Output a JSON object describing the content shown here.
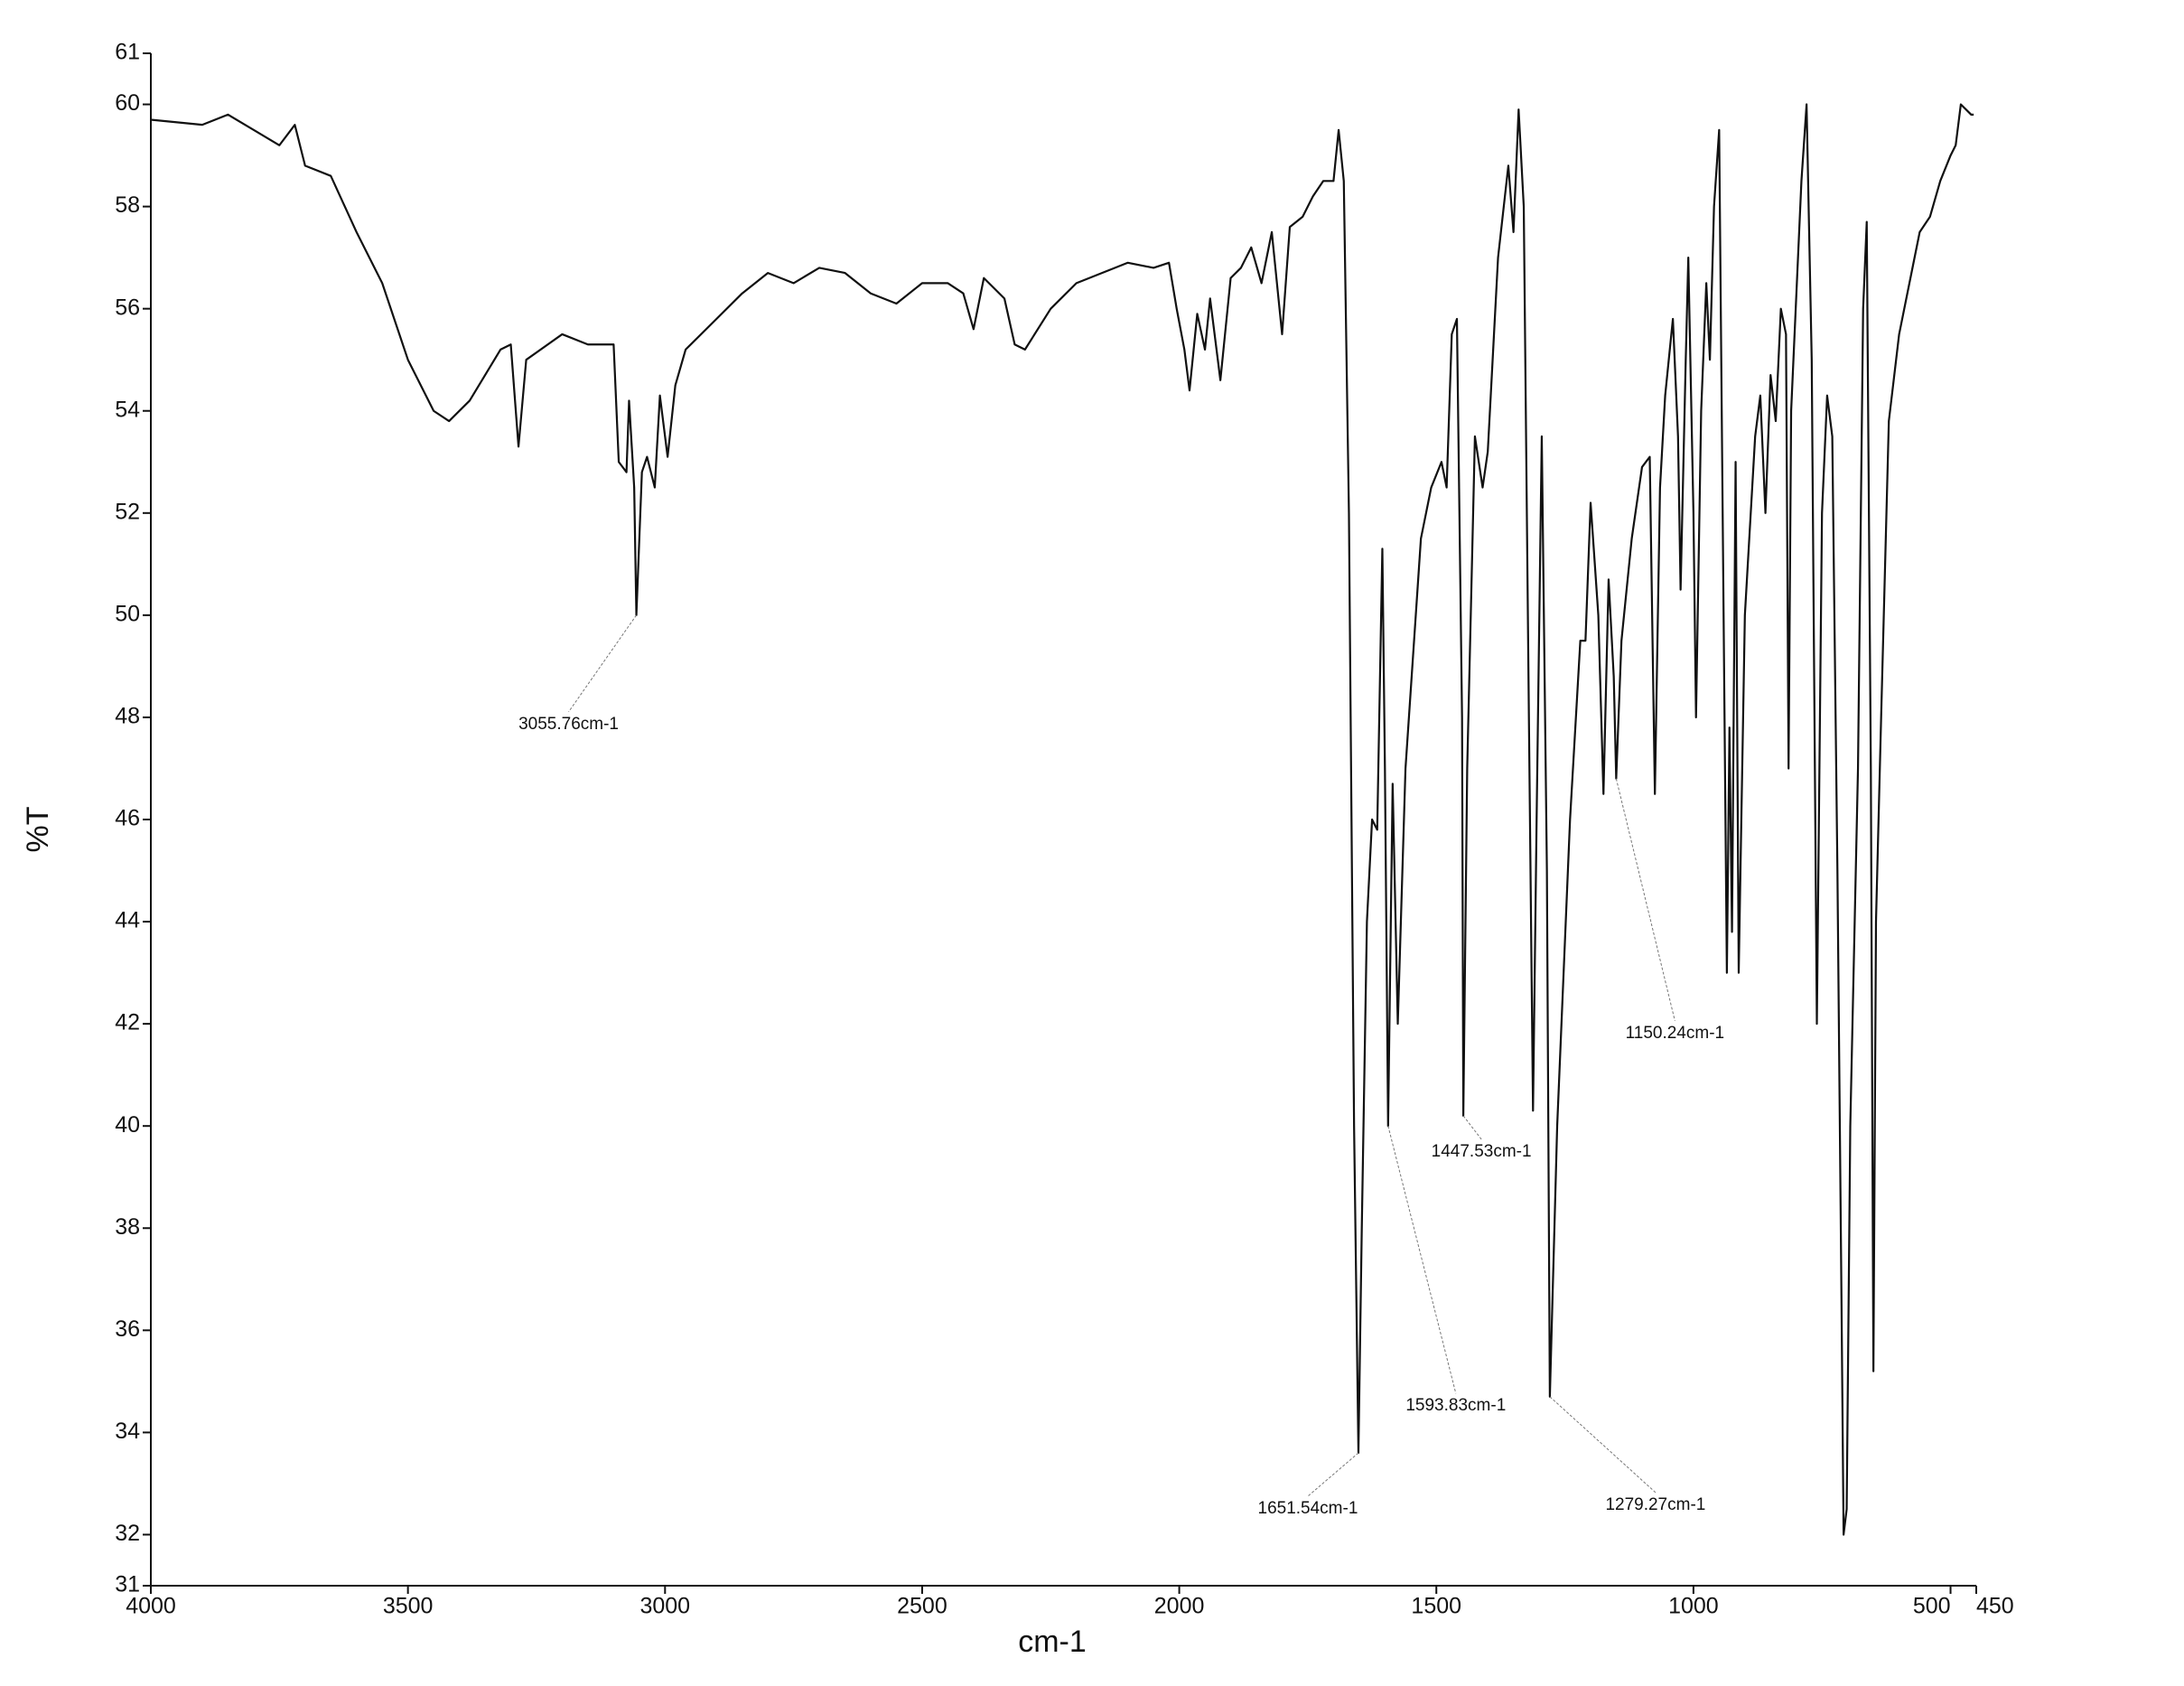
{
  "chart_data": {
    "type": "line",
    "x_label": "cm-1",
    "y_label": "%T",
    "color": "#111111",
    "xlim": [
      4000,
      450
    ],
    "ylim": [
      31,
      61
    ],
    "xticks": [
      4000,
      3500,
      3000,
      2500,
      2000,
      1500,
      1000,
      500,
      450
    ],
    "yticks": [
      31,
      32,
      34,
      36,
      38,
      40,
      42,
      44,
      46,
      48,
      50,
      52,
      54,
      56,
      58,
      60,
      61
    ],
    "x": [
      4000,
      3900,
      3850,
      3800,
      3750,
      3720,
      3700,
      3650,
      3600,
      3550,
      3500,
      3450,
      3420,
      3380,
      3320,
      3300,
      3285,
      3270,
      3200,
      3150,
      3100,
      3090,
      3075,
      3070,
      3060,
      3055.76,
      3045,
      3035,
      3020,
      3010,
      2995,
      2980,
      2960,
      2900,
      2850,
      2800,
      2750,
      2700,
      2650,
      2600,
      2550,
      2500,
      2450,
      2420,
      2400,
      2380,
      2340,
      2320,
      2300,
      2250,
      2200,
      2100,
      2050,
      2020,
      2005,
      1990,
      1980,
      1965,
      1950,
      1940,
      1920,
      1900,
      1880,
      1860,
      1840,
      1820,
      1800,
      1785,
      1760,
      1740,
      1720,
      1700,
      1690,
      1680,
      1670,
      1660,
      1651.54,
      1645,
      1635,
      1625,
      1615,
      1605,
      1600,
      1593.83,
      1585,
      1575,
      1560,
      1530,
      1510,
      1490,
      1480,
      1470,
      1460,
      1450,
      1447.53,
      1440,
      1425,
      1410,
      1400,
      1380,
      1360,
      1350,
      1340,
      1330,
      1320,
      1312,
      1305,
      1295,
      1285,
      1279.27,
      1265,
      1240,
      1220,
      1210,
      1200,
      1185,
      1175,
      1165,
      1155,
      1150.24,
      1140,
      1120,
      1100,
      1085,
      1075,
      1065,
      1055,
      1040,
      1030,
      1025,
      1015,
      1010,
      1000,
      995,
      985,
      975,
      968,
      960,
      950,
      945,
      935,
      930,
      925,
      918,
      912,
      900,
      880,
      870,
      860,
      850,
      840,
      830,
      820,
      815,
      810,
      790,
      780,
      770,
      760,
      750,
      740,
      730,
      720,
      712,
      708,
      702,
      695,
      680,
      670,
      663,
      655,
      650,
      645,
      635,
      620,
      600,
      580,
      560,
      540,
      520,
      500,
      490,
      480,
      460,
      455
    ],
    "values": [
      59.7,
      59.6,
      59.8,
      59.5,
      59.2,
      59.6,
      58.8,
      58.6,
      57.5,
      56.5,
      55,
      54,
      53.8,
      54.2,
      55.2,
      55.3,
      53.3,
      55,
      55.5,
      55.3,
      55.3,
      53,
      52.8,
      54.2,
      52.5,
      50,
      52.8,
      53.1,
      52.5,
      54.3,
      53.1,
      54.5,
      55.2,
      55.8,
      56.3,
      56.7,
      56.5,
      56.8,
      56.7,
      56.3,
      56.1,
      56.5,
      56.5,
      56.3,
      55.6,
      56.6,
      56.2,
      55.3,
      55.2,
      56,
      56.5,
      56.9,
      56.8,
      56.9,
      56,
      55.2,
      54.4,
      55.9,
      55.2,
      56.2,
      54.6,
      56.6,
      56.8,
      57.2,
      56.5,
      57.5,
      55.5,
      57.6,
      57.8,
      58.2,
      58.5,
      58.5,
      59.5,
      58.5,
      52,
      40,
      33.6,
      38,
      44,
      46,
      45.8,
      51.3,
      47,
      40,
      46.7,
      42,
      47,
      51.5,
      52.5,
      53,
      52.5,
      55.5,
      55.8,
      48,
      40.2,
      47,
      53.5,
      52.5,
      53.2,
      57,
      58.8,
      57.5,
      59.9,
      58,
      48,
      40.3,
      46,
      53.5,
      45,
      34.7,
      40,
      46,
      49.5,
      49.5,
      52.2,
      50,
      46.5,
      50.7,
      48.8,
      46.8,
      49.5,
      51.5,
      52.9,
      53.1,
      46.5,
      52.5,
      54.3,
      55.8,
      53.5,
      50.5,
      55,
      57,
      52,
      48,
      54,
      56.5,
      55,
      58,
      59.5,
      54,
      43,
      47.8,
      43.8,
      53,
      43,
      50,
      53.5,
      54.3,
      52,
      54.7,
      53.8,
      56,
      55.5,
      47,
      54,
      58.5,
      60,
      55,
      42,
      52,
      54.3,
      53.5,
      45,
      36.5,
      32,
      32.5,
      40,
      47,
      56,
      57.7,
      47,
      35.2,
      44,
      48,
      53.8,
      55.5,
      56.5,
      57.5,
      57.8,
      58.5,
      59,
      59.2,
      60,
      59.8,
      59.8
    ],
    "annotations": [
      {
        "text": "3055.76cm-1",
        "x": 3055.76,
        "y": 50
      },
      {
        "text": "1651.54cm-1",
        "x": 1651.54,
        "y": 33.6
      },
      {
        "text": "1593.83cm-1",
        "x": 1593.83,
        "y": 40
      },
      {
        "text": "1447.53cm-1",
        "x": 1447.53,
        "y": 40.2
      },
      {
        "text": "1279.27cm-1",
        "x": 1279.27,
        "y": 34.7
      },
      {
        "text": "1150.24cm-1",
        "x": 1150.24,
        "y": 46.8
      }
    ]
  }
}
